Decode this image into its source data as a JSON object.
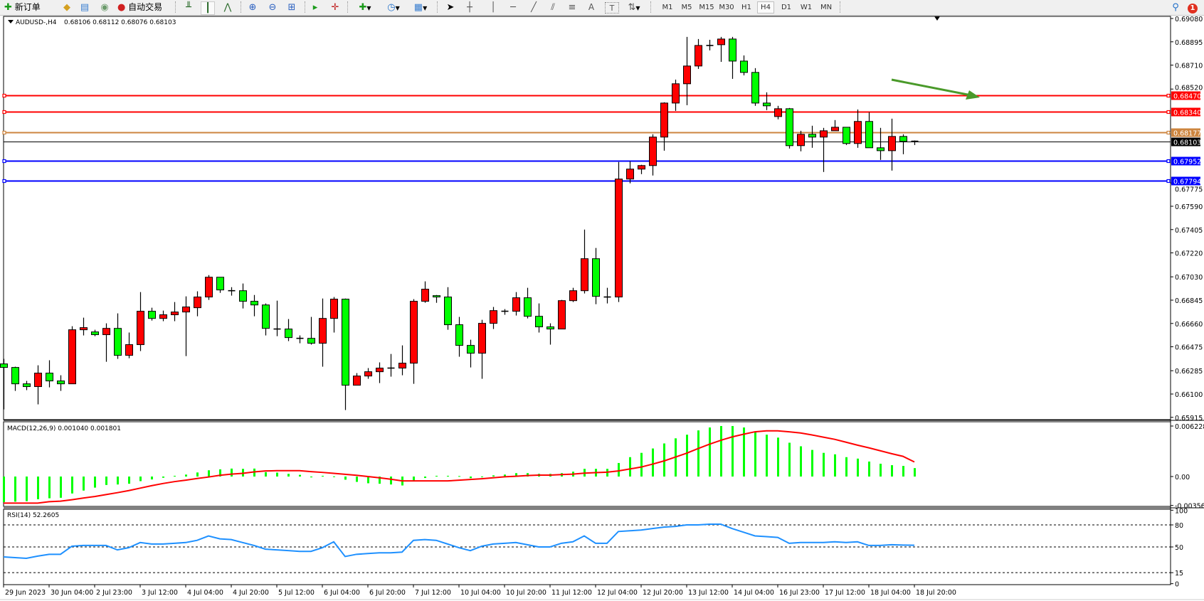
{
  "toolbar": {
    "new_order_label": "新订单",
    "auto_trading_label": "自动交易",
    "timeframes": [
      "M1",
      "M5",
      "M15",
      "M30",
      "H1",
      "H4",
      "D1",
      "W1",
      "MN"
    ],
    "active_timeframe": "H4",
    "notification_count": "1",
    "text_tool_label": "A",
    "label_tool_label": "T"
  },
  "chart": {
    "symbol": "AUDUSD-,H4",
    "ohlc_readout": "0.68106 0.68112 0.68076 0.68103",
    "colors": {
      "bull_body": "#ff0000",
      "bear_body": "#00ff00",
      "outline": "#000000",
      "arrow": "#4a9a2a"
    },
    "price_ticks": [
      "0.69080",
      "0.68895",
      "0.68710",
      "0.68520",
      "0.67775",
      "0.67590",
      "0.67405",
      "0.67220",
      "0.67030",
      "0.66845",
      "0.66660",
      "0.66475",
      "0.66285",
      "0.66100",
      "0.65915"
    ],
    "levels": [
      {
        "price": "0.68470",
        "color": "#ff0000"
      },
      {
        "price": "0.68340",
        "color": "#ff0000"
      },
      {
        "price": "0.68177",
        "color": "#cd853f"
      },
      {
        "price": "0.67952",
        "color": "#0000ff"
      },
      {
        "price": "0.67794",
        "color": "#0000ff"
      }
    ],
    "current_price": {
      "price": "0.68103",
      "color": "#000000"
    },
    "date_labels": [
      "29 Jun 2023",
      "30 Jun 04:00",
      "2 Jul 23:00",
      "3 Jul 12:00",
      "4 Jul 04:00",
      "4 Jul 20:00",
      "5 Jul 12:00",
      "6 Jul 04:00",
      "6 Jul 20:00",
      "7 Jul 12:00",
      "10 Jul 04:00",
      "10 Jul 20:00",
      "11 Jul 12:00",
      "12 Jul 04:00",
      "12 Jul 20:00",
      "13 Jul 12:00",
      "14 Jul 04:00",
      "16 Jul 23:00",
      "17 Jul 12:00",
      "18 Jul 04:00",
      "18 Jul 20:00"
    ]
  },
  "macd": {
    "title": "MACD(12,26,9) 0.001040 0.001801",
    "ticks": [
      "0.006228",
      "0.00",
      "-0.003564"
    ],
    "histogram_color": "#00ff00",
    "signal_color": "#ff0000"
  },
  "rsi": {
    "title": "RSI(14) 52.2605",
    "ticks": [
      "100",
      "80",
      "50",
      "15",
      "0"
    ],
    "line_color": "#1e90ff"
  },
  "chart_data": {
    "type": "candlestick",
    "ylim": [
      0.65915,
      0.6908
    ],
    "candles_ohlc": [
      [
        0.66339,
        0.66379,
        0.65978,
        0.66311
      ],
      [
        0.66311,
        0.66317,
        0.66125,
        0.66181
      ],
      [
        0.66181,
        0.66204,
        0.66131,
        0.66159
      ],
      [
        0.66159,
        0.66328,
        0.66018,
        0.66266
      ],
      [
        0.66266,
        0.66368,
        0.66153,
        0.66204
      ],
      [
        0.66204,
        0.66249,
        0.66125,
        0.66181
      ],
      [
        0.66181,
        0.66638,
        0.66181,
        0.6661
      ],
      [
        0.6661,
        0.66706,
        0.66565,
        0.66627
      ],
      [
        0.66593,
        0.6661,
        0.66559,
        0.66571
      ],
      [
        0.66571,
        0.66661,
        0.66356,
        0.66621
      ],
      [
        0.66621,
        0.6674,
        0.66379,
        0.66407
      ],
      [
        0.66407,
        0.66588,
        0.66384,
        0.66492
      ],
      [
        0.66492,
        0.66909,
        0.66441,
        0.66757
      ],
      [
        0.66757,
        0.66785,
        0.66683,
        0.667
      ],
      [
        0.667,
        0.66762,
        0.66678,
        0.66729
      ],
      [
        0.66729,
        0.6683,
        0.66678,
        0.66751
      ],
      [
        0.66751,
        0.66875,
        0.66401,
        0.66791
      ],
      [
        0.66785,
        0.66915,
        0.66717,
        0.6687
      ],
      [
        0.6687,
        0.67044,
        0.66847,
        0.67027
      ],
      [
        0.67027,
        0.67027,
        0.66903,
        0.66926
      ],
      [
        0.6692,
        0.66948,
        0.66881,
        0.6692
      ],
      [
        0.6692,
        0.66977,
        0.66779,
        0.66836
      ],
      [
        0.66836,
        0.66886,
        0.66717,
        0.66807
      ],
      [
        0.66807,
        0.66819,
        0.66565,
        0.66621
      ],
      [
        0.66616,
        0.66841,
        0.66559,
        0.66616
      ],
      [
        0.66616,
        0.66695,
        0.6652,
        0.66548
      ],
      [
        0.66542,
        0.66565,
        0.66503,
        0.66542
      ],
      [
        0.66542,
        0.66712,
        0.66492,
        0.66503
      ],
      [
        0.66503,
        0.66858,
        0.66317,
        0.667
      ],
      [
        0.667,
        0.6687,
        0.66588,
        0.66853
      ],
      [
        0.66853,
        0.66858,
        0.65973,
        0.6617
      ],
      [
        0.6617,
        0.66266,
        0.6617,
        0.66243
      ],
      [
        0.66243,
        0.66306,
        0.66221,
        0.66277
      ],
      [
        0.66277,
        0.66351,
        0.66187,
        0.66306
      ],
      [
        0.66306,
        0.66418,
        0.66238,
        0.66306
      ],
      [
        0.66306,
        0.66486,
        0.66249,
        0.66345
      ],
      [
        0.66345,
        0.66853,
        0.66181,
        0.66836
      ],
      [
        0.66836,
        0.66994,
        0.66824,
        0.66932
      ],
      [
        0.66881,
        0.66886,
        0.66824,
        0.6687
      ],
      [
        0.6687,
        0.66948,
        0.6661,
        0.6665
      ],
      [
        0.6665,
        0.66712,
        0.66396,
        0.66486
      ],
      [
        0.66486,
        0.66531,
        0.66311,
        0.66424
      ],
      [
        0.66424,
        0.66689,
        0.66221,
        0.66661
      ],
      [
        0.66661,
        0.66791,
        0.66616,
        0.66762
      ],
      [
        0.66757,
        0.66774,
        0.66729,
        0.66757
      ],
      [
        0.66757,
        0.66909,
        0.66723,
        0.66864
      ],
      [
        0.66864,
        0.66943,
        0.667,
        0.66717
      ],
      [
        0.66717,
        0.66819,
        0.66588,
        0.66633
      ],
      [
        0.66633,
        0.66661,
        0.66492,
        0.66616
      ],
      [
        0.66616,
        0.66847,
        0.66616,
        0.66841
      ],
      [
        0.66841,
        0.66943,
        0.6683,
        0.6692
      ],
      [
        0.6692,
        0.67405,
        0.66898,
        0.67174
      ],
      [
        0.67174,
        0.67259,
        0.66813,
        0.66875
      ],
      [
        0.6687,
        0.66943,
        0.66819,
        0.6687
      ],
      [
        0.6687,
        0.67941,
        0.6683,
        0.67806
      ],
      [
        0.67806,
        0.67947,
        0.67772,
        0.67885
      ],
      [
        0.67885,
        0.67919,
        0.67845,
        0.67913
      ],
      [
        0.67913,
        0.68161,
        0.67834,
        0.68139
      ],
      [
        0.68139,
        0.68415,
        0.68031,
        0.68409
      ],
      [
        0.68409,
        0.68595,
        0.68347,
        0.68562
      ],
      [
        0.68562,
        0.68934,
        0.68392,
        0.68703
      ],
      [
        0.68703,
        0.68917,
        0.6868,
        0.68866
      ],
      [
        0.68866,
        0.68911,
        0.68827,
        0.68866
      ],
      [
        0.68872,
        0.68934,
        0.68736,
        0.68917
      ],
      [
        0.68917,
        0.68934,
        0.68601,
        0.68742
      ],
      [
        0.68742,
        0.68787,
        0.68629,
        0.68652
      ],
      [
        0.68652,
        0.68686,
        0.68387,
        0.68409
      ],
      [
        0.68409,
        0.68494,
        0.68353,
        0.68387
      ],
      [
        0.68302,
        0.68387,
        0.6828,
        0.68364
      ],
      [
        0.68364,
        0.6837,
        0.68048,
        0.68071
      ],
      [
        0.68071,
        0.68189,
        0.68026,
        0.68161
      ],
      [
        0.68161,
        0.68229,
        0.68054,
        0.68139
      ],
      [
        0.68139,
        0.68212,
        0.67862,
        0.68189
      ],
      [
        0.68189,
        0.68274,
        0.68189,
        0.68217
      ],
      [
        0.68217,
        0.68217,
        0.68076,
        0.68088
      ],
      [
        0.68088,
        0.68358,
        0.68054,
        0.68263
      ],
      [
        0.68263,
        0.68336,
        0.68054,
        0.68054
      ],
      [
        0.68054,
        0.68212,
        0.67958,
        0.68031
      ],
      [
        0.68031,
        0.68285,
        0.67873,
        0.68144
      ],
      [
        0.68144,
        0.68161,
        0.68003,
        0.68105
      ],
      [
        0.68106,
        0.68112,
        0.68076,
        0.68103
      ]
    ],
    "macd_ylim": [
      -0.003564,
      0.006228
    ],
    "macd_histogram": [
      -0.00316,
      -0.0031,
      -0.00304,
      -0.0028,
      -0.00268,
      -0.00262,
      -0.00209,
      -0.00173,
      -0.00137,
      -0.00104,
      -0.00098,
      -0.00089,
      -0.00057,
      -0.00036,
      -0.00015,
      9e-05,
      0.00024,
      0.0005,
      0.00077,
      0.00089,
      0.00098,
      0.00095,
      0.00098,
      0.00054,
      0.00048,
      0.00033,
      0.00021,
      -0.0001,
      9e-05,
      2e-05,
      -0.00039,
      -0.00066,
      -0.00083,
      -0.00089,
      -0.00098,
      -0.0011,
      -0.0005,
      -0.00018,
      9e-05,
      9e-05,
      6e-05,
      -0.0002,
      -6e-05,
      0.00014,
      0.00024,
      0.00042,
      0.00042,
      0.00033,
      0.00033,
      0.00042,
      0.0006,
      0.00095,
      0.00095,
      0.00095,
      0.00167,
      0.00239,
      0.00292,
      0.00346,
      0.00408,
      0.00471,
      0.00516,
      0.00569,
      0.00605,
      0.00623,
      0.00623,
      0.00605,
      0.00551,
      0.00516,
      0.0048,
      0.00417,
      0.00373,
      0.00328,
      0.00292,
      0.00274,
      0.00239,
      0.00221,
      0.00185,
      0.00158,
      0.0014,
      0.00131,
      0.00104
    ],
    "macd_signal": [
      -0.00328,
      -0.00328,
      -0.00328,
      -0.00328,
      -0.0031,
      -0.00304,
      -0.00286,
      -0.00265,
      -0.00247,
      -0.00223,
      -0.00199,
      -0.00173,
      -0.00143,
      -0.00113,
      -0.00086,
      -0.00063,
      -0.00045,
      -0.00024,
      -6e-05,
      0.00015,
      0.0003,
      0.00039,
      0.00057,
      0.00069,
      0.00072,
      0.00072,
      0.00072,
      0.0006,
      0.00051,
      0.00039,
      0.00027,
      0.00015,
      0.0,
      -0.00015,
      -0.00033,
      -0.00054,
      -0.00054,
      -0.00054,
      -0.00054,
      -0.00054,
      -0.00045,
      -0.00036,
      -0.00027,
      -0.00015,
      -3e-05,
      3e-05,
      0.00012,
      0.00018,
      0.00018,
      0.00024,
      0.0003,
      0.00042,
      0.00048,
      0.00054,
      0.00069,
      0.00093,
      0.00117,
      0.00153,
      0.00192,
      0.0024,
      0.00288,
      0.00345,
      0.00399,
      0.00447,
      0.00489,
      0.00522,
      0.00552,
      0.00564,
      0.00564,
      0.00552,
      0.00537,
      0.00513,
      0.00486,
      0.00459,
      0.00423,
      0.00387,
      0.00354,
      0.00318,
      0.00282,
      0.00249,
      0.0018
    ],
    "rsi_ylim": [
      0,
      100
    ],
    "rsi_levels": [
      80,
      50,
      15
    ],
    "rsi_values": [
      36.5,
      35.5,
      34.5,
      37.5,
      40,
      40,
      51,
      52,
      52,
      52,
      46,
      49,
      56,
      54,
      54,
      55,
      56,
      59,
      65,
      61,
      60,
      56,
      52,
      47,
      46,
      45,
      44,
      44,
      49,
      57,
      37,
      40,
      41,
      42,
      42,
      43,
      59,
      60,
      59,
      54,
      49,
      45,
      51,
      54,
      55,
      56,
      53,
      50,
      50,
      55,
      57,
      65,
      55,
      55,
      71,
      72,
      73,
      75,
      77,
      78,
      80,
      80,
      81,
      81,
      75,
      70,
      65,
      64,
      63,
      55,
      56,
      56,
      56,
      57,
      56,
      57,
      52,
      52,
      53,
      52.5,
      52.26
    ]
  }
}
